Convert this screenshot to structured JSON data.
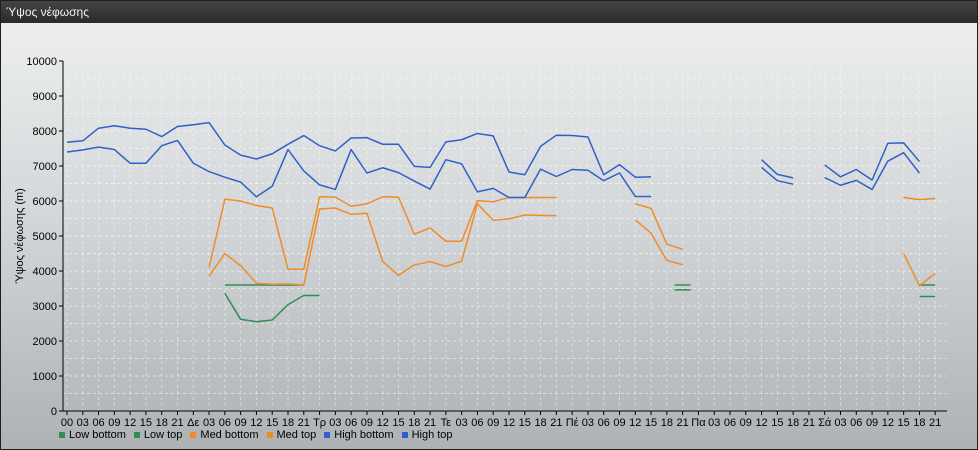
{
  "window": {
    "title": "Ύψος νέφωσης"
  },
  "chart_data": {
    "type": "line",
    "ylabel": "Ύψος νέφωσης (m)",
    "ylim": [
      0,
      10000
    ],
    "yticks": [
      0,
      1000,
      2000,
      3000,
      4000,
      5000,
      6000,
      7000,
      8000,
      9000,
      10000
    ],
    "grid": true,
    "legend_position": "bottom-left",
    "categories": [
      "00",
      "03",
      "06",
      "09",
      "12",
      "15",
      "18",
      "21",
      "Δε",
      "03",
      "06",
      "09",
      "12",
      "15",
      "18",
      "21",
      "Τρ",
      "03",
      "06",
      "09",
      "12",
      "15",
      "18",
      "21",
      "Τε",
      "03",
      "06",
      "09",
      "12",
      "15",
      "18",
      "21",
      "Πέ",
      "03",
      "06",
      "09",
      "12",
      "15",
      "18",
      "21",
      "Πα",
      "03",
      "06",
      "09",
      "12",
      "15",
      "18",
      "21",
      "Σά",
      "03",
      "06",
      "09",
      "12",
      "15",
      "18",
      "21"
    ],
    "series": [
      {
        "name": "Low bottom",
        "color": "#2f8d57",
        "values": [
          null,
          null,
          null,
          null,
          null,
          null,
          null,
          null,
          null,
          null,
          3600,
          3600,
          3600,
          3600,
          3600,
          3600,
          null,
          null,
          null,
          null,
          null,
          null,
          null,
          null,
          null,
          null,
          null,
          null,
          null,
          null,
          null,
          null,
          null,
          null,
          null,
          null,
          null,
          null,
          null,
          3460,
          null,
          null,
          null,
          null,
          null,
          null,
          null,
          null,
          null,
          null,
          null,
          null,
          null,
          null,
          3270,
          3270
        ]
      },
      {
        "name": "Low top",
        "color": "#2f8d57",
        "values": [
          null,
          null,
          null,
          null,
          null,
          null,
          null,
          null,
          null,
          null,
          3360,
          2620,
          2550,
          2600,
          3040,
          3300,
          3300,
          null,
          null,
          null,
          null,
          null,
          null,
          null,
          null,
          null,
          null,
          null,
          null,
          null,
          null,
          null,
          null,
          null,
          null,
          null,
          null,
          null,
          null,
          3600,
          null,
          null,
          null,
          null,
          null,
          null,
          null,
          null,
          null,
          null,
          null,
          null,
          null,
          null,
          3600,
          3600
        ]
      },
      {
        "name": "Med bottom",
        "color": "#f08c28",
        "values": [
          null,
          null,
          null,
          null,
          null,
          null,
          null,
          null,
          null,
          4100,
          6050,
          6000,
          5870,
          5800,
          4050,
          4050,
          6120,
          6110,
          5850,
          5920,
          6120,
          6110,
          5050,
          5230,
          4850,
          4850,
          6010,
          5980,
          6100,
          6100,
          6100,
          6100,
          null,
          null,
          null,
          null,
          5920,
          5790,
          4770,
          4620,
          null,
          null,
          null,
          null,
          null,
          null,
          null,
          null,
          null,
          null,
          null,
          null,
          null,
          6100,
          6040,
          6070
        ]
      },
      {
        "name": "Med top",
        "color": "#f08c28",
        "values": [
          null,
          null,
          null,
          null,
          null,
          null,
          null,
          null,
          null,
          3850,
          4500,
          4150,
          3650,
          3620,
          3630,
          3600,
          5770,
          5800,
          5620,
          5650,
          4270,
          3880,
          4170,
          4270,
          4130,
          4280,
          5920,
          5450,
          5490,
          5600,
          5590,
          5580,
          null,
          null,
          null,
          null,
          5460,
          5080,
          4300,
          4180,
          null,
          null,
          null,
          null,
          null,
          null,
          null,
          null,
          null,
          null,
          null,
          null,
          null,
          4500,
          3580,
          3930
        ]
      },
      {
        "name": "High bottom",
        "color": "#3060c8",
        "values": [
          7400,
          7460,
          7540,
          7470,
          7080,
          7080,
          7580,
          7730,
          7080,
          6840,
          6680,
          6540,
          6120,
          6420,
          7470,
          6860,
          6460,
          6330,
          7470,
          6800,
          6950,
          6810,
          6570,
          6340,
          7180,
          7060,
          6260,
          6360,
          6100,
          6100,
          6910,
          6700,
          6900,
          6880,
          6580,
          6800,
          6130,
          6130,
          null,
          null,
          null,
          null,
          null,
          null,
          6960,
          6580,
          6480,
          null,
          6670,
          6450,
          6590,
          6330,
          7140,
          7380,
          6800,
          null
        ]
      },
      {
        "name": "High top",
        "color": "#3060c8",
        "values": [
          7680,
          7720,
          8080,
          8150,
          8080,
          8050,
          7840,
          8130,
          8180,
          8240,
          7600,
          7310,
          7200,
          7350,
          7620,
          7870,
          7580,
          7430,
          7800,
          7810,
          7620,
          7620,
          6990,
          6960,
          7690,
          7750,
          7930,
          7860,
          6830,
          6750,
          7560,
          7880,
          7870,
          7830,
          6750,
          7040,
          6680,
          6690,
          null,
          null,
          null,
          null,
          null,
          null,
          7180,
          6760,
          6660,
          null,
          7030,
          6690,
          6900,
          6600,
          7650,
          7660,
          7130,
          null
        ]
      }
    ]
  }
}
